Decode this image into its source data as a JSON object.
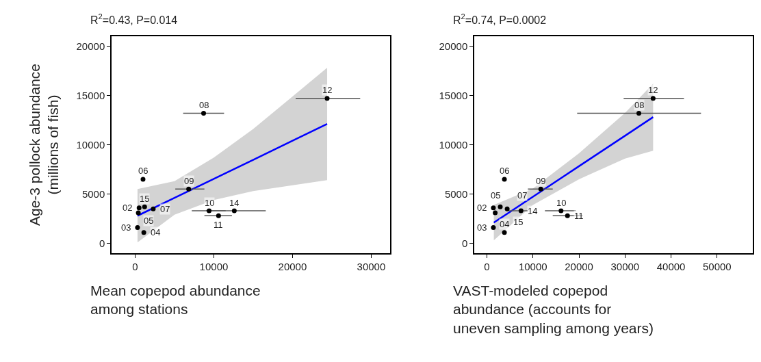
{
  "chart_data": [
    {
      "type": "scatter",
      "title": "R$^{2}$=0.43, P=0.014",
      "xlabel": "Mean copepod abundance\namong stations",
      "ylabel": "Age-3 pollock abundance\n(millions of fish)",
      "xlim": [
        -3000,
        32400
      ],
      "ylim": [
        -1000,
        21000
      ],
      "xticks": [
        0,
        10000,
        20000,
        30000
      ],
      "yticks": [
        0,
        5000,
        10000,
        15000,
        20000
      ],
      "grid": false,
      "series": [
        {
          "color": "#000000",
          "marker": "circle",
          "x": [
            500,
            300,
            1100,
            400,
            1000,
            2300,
            8700,
            6800,
            9400,
            10600,
            24400,
            12600,
            1200
          ],
          "values": [
            3600,
            1600,
            1100,
            3100,
            6500,
            3500,
            13200,
            5500,
            3300,
            2800,
            14700,
            3300,
            3700
          ],
          "xerrors": [
            null,
            null,
            null,
            null,
            null,
            null,
            [
              6100,
              11300
            ],
            [
              5100,
              8800
            ],
            [
              7200,
              11500
            ],
            [
              8800,
              12300
            ],
            [
              20400,
              28600
            ],
            [
              9000,
              16600
            ],
            null
          ]
        },
        {
          "type": "line",
          "color": "#0000ff",
          "x": [
            300,
            5000,
            10000,
            15000,
            20000,
            24400
          ],
          "values": [
            2800,
            4610,
            6540,
            8470,
            10400,
            12100
          ],
          "lower": [
            100,
            2900,
            4400,
            5300,
            5900,
            6400
          ],
          "upper": [
            5500,
            6300,
            8700,
            11600,
            14900,
            17800
          ]
        }
      ],
      "annotations": [
        {
          "text": "02",
          "x": 500,
          "y": 3600
        },
        {
          "text": "03",
          "x": 300,
          "y": 1600
        },
        {
          "text": "04",
          "x": 1100,
          "y": 1100
        },
        {
          "text": "05",
          "x": 400,
          "y": 3100
        },
        {
          "text": "06",
          "x": 1000,
          "y": 6500
        },
        {
          "text": "07",
          "x": 2300,
          "y": 3500
        },
        {
          "text": "08",
          "x": 8700,
          "y": 13200
        },
        {
          "text": "09",
          "x": 6800,
          "y": 5500
        },
        {
          "text": "10",
          "x": 9400,
          "y": 3300
        },
        {
          "text": "11",
          "x": 10600,
          "y": 2800
        },
        {
          "text": "12",
          "x": 24400,
          "y": 14700
        },
        {
          "text": "14",
          "x": 12600,
          "y": 3300
        },
        {
          "text": "15",
          "x": 1200,
          "y": 3700
        }
      ]
    },
    {
      "type": "scatter",
      "title": "R$^{2}$=0.74, P=0.0002",
      "xlabel": "VAST-modeled copepod\nabundance (accounts for\nuneven sampling among years)",
      "xlim": [
        -2750,
        57750
      ],
      "ylim": [
        -1000,
        21000
      ],
      "xticks": [
        0,
        10000,
        20000,
        30000,
        40000,
        50000
      ],
      "yticks": [
        0,
        5000,
        10000,
        15000,
        20000
      ],
      "grid": false,
      "series": [
        {
          "color": "#000000",
          "marker": "circle",
          "x": [
            1400,
            1400,
            3800,
            1800,
            3800,
            4400,
            33000,
            11700,
            16100,
            17500,
            36100,
            7400,
            2900
          ],
          "values": [
            3600,
            1600,
            1100,
            3100,
            6500,
            3500,
            13200,
            5500,
            3300,
            2800,
            14700,
            3300,
            3700
          ],
          "xerrors": [
            null,
            null,
            null,
            null,
            null,
            null,
            [
              19600,
              46500
            ],
            [
              8900,
              14300
            ],
            [
              12600,
              19300
            ],
            [
              14300,
              20800
            ],
            [
              29700,
              42800
            ],
            [
              4800,
              9000
            ],
            null
          ]
        },
        {
          "type": "line",
          "color": "#0000ff",
          "x": [
            1500,
            10000,
            20000,
            30000,
            36100
          ],
          "values": [
            2100,
            4730,
            7820,
            10910,
            12800
          ],
          "lower": [
            300,
            3900,
            6500,
            8600,
            9400
          ],
          "upper": [
            3900,
            5560,
            9140,
            13220,
            16200
          ]
        }
      ],
      "annotations": [
        {
          "text": "02",
          "x": 1400,
          "y": 3600
        },
        {
          "text": "03",
          "x": 1400,
          "y": 1600
        },
        {
          "text": "04",
          "x": 3800,
          "y": 1100
        },
        {
          "text": "05",
          "x": 1800,
          "y": 3100
        },
        {
          "text": "06",
          "x": 3800,
          "y": 6500
        },
        {
          "text": "07",
          "x": 4400,
          "y": 3500
        },
        {
          "text": "08",
          "x": 33000,
          "y": 13200
        },
        {
          "text": "09",
          "x": 11700,
          "y": 5500
        },
        {
          "text": "10",
          "x": 16100,
          "y": 3300
        },
        {
          "text": "11",
          "x": 17500,
          "y": 2800
        },
        {
          "text": "12",
          "x": 36100,
          "y": 14700
        },
        {
          "text": "14",
          "x": 7400,
          "y": 3300
        },
        {
          "text": "15",
          "x": 2900,
          "y": 3700
        }
      ]
    }
  ]
}
